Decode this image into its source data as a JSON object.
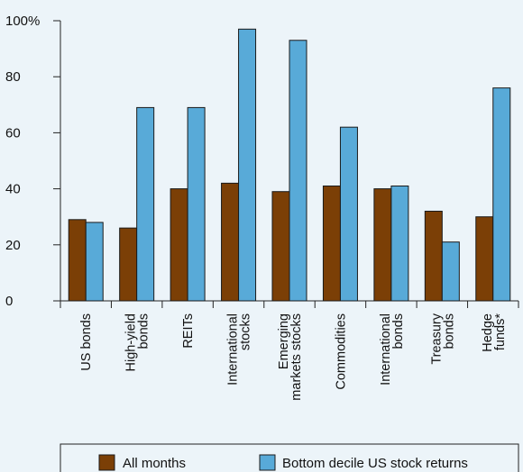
{
  "chart_data": {
    "type": "bar",
    "y_tick_labels": [
      "0",
      "20",
      "40",
      "60",
      "80",
      "100%"
    ],
    "ylim": [
      0,
      100
    ],
    "grid": false,
    "legend_position": "bottom",
    "categories": [
      [
        "US bonds"
      ],
      [
        "High-yield",
        "bonds"
      ],
      [
        "REITs"
      ],
      [
        "International",
        "stocks"
      ],
      [
        "Emerging",
        "markets stocks"
      ],
      [
        "Commodities"
      ],
      [
        "International",
        "bonds"
      ],
      [
        "Treasury",
        "bonds"
      ],
      [
        "Hedge",
        "funds*"
      ]
    ],
    "series": [
      {
        "name": "All months",
        "color": "#7b3f06",
        "values": [
          29,
          26,
          40,
          42,
          39,
          41,
          40,
          32,
          30
        ]
      },
      {
        "name": "Bottom decile US stock returns",
        "color": "#58aad8",
        "values": [
          28,
          69,
          69,
          97,
          93,
          62,
          41,
          21,
          76
        ]
      }
    ]
  }
}
